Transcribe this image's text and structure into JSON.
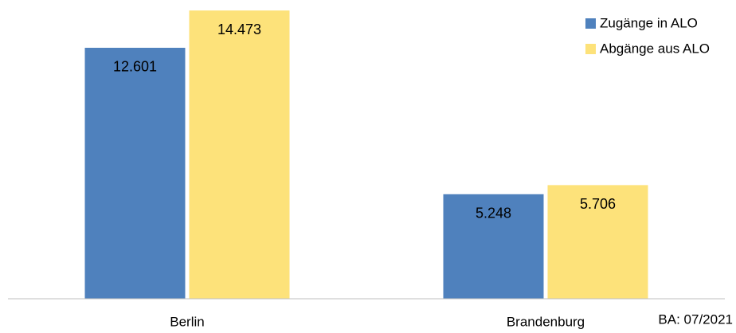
{
  "chart_data": {
    "type": "bar",
    "categories": [
      "Berlin",
      "Brandenburg"
    ],
    "series": [
      {
        "name": "Zugänge in ALO",
        "color": "#4f81bd",
        "values": [
          12601,
          5248
        ],
        "value_labels": [
          "12.601",
          "5.248"
        ]
      },
      {
        "name": "Abgänge aus ALO",
        "color": "#fde27a",
        "values": [
          14473,
          5706
        ],
        "value_labels": [
          "14.473",
          "5.706"
        ]
      }
    ],
    "ylim": [
      0,
      15000
    ],
    "legend": "top-right",
    "annotation": "BA: 07/2021"
  }
}
